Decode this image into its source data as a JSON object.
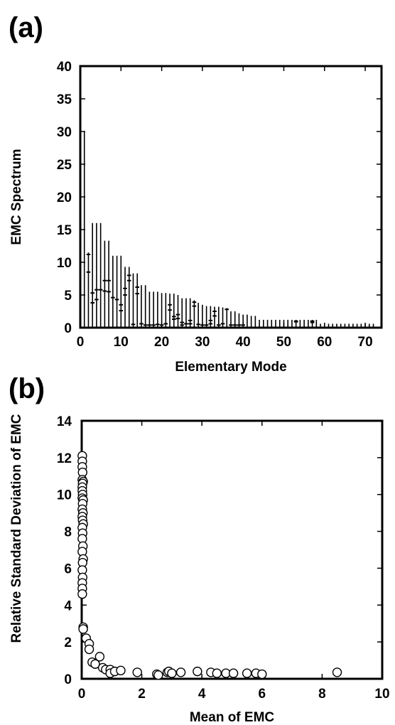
{
  "chart_data": [
    {
      "panel_label": "(a)",
      "type": "bar",
      "title": "",
      "xlabel": "Elementary Mode",
      "ylabel": "EMC Spectrum",
      "xlim": [
        0,
        74
      ],
      "ylim": [
        0,
        40
      ],
      "xticks": [
        0,
        10,
        20,
        30,
        40,
        50,
        60,
        70
      ],
      "yticks": [
        0,
        5,
        10,
        15,
        20,
        25,
        30,
        35,
        40
      ],
      "grid": false,
      "legend": "none",
      "modes": [
        {
          "x": 1,
          "min": 0,
          "max": 30,
          "marks": []
        },
        {
          "x": 2,
          "min": 0,
          "max": 11.5,
          "marks": [
            11.2,
            8.5
          ]
        },
        {
          "x": 3,
          "min": 0,
          "max": 16,
          "marks": [
            5.3,
            3.8
          ]
        },
        {
          "x": 4,
          "min": 0,
          "max": 16,
          "marks": [
            5.8,
            4.3
          ]
        },
        {
          "x": 5,
          "min": 0,
          "max": 16,
          "marks": [
            5.8
          ]
        },
        {
          "x": 6,
          "min": 0,
          "max": 13.3,
          "marks": [
            7.2,
            5.6
          ]
        },
        {
          "x": 7,
          "min": 0,
          "max": 13.3,
          "marks": [
            7.2,
            5.5
          ]
        },
        {
          "x": 8,
          "min": 0,
          "max": 11,
          "marks": [
            4.6
          ]
        },
        {
          "x": 9,
          "min": 0,
          "max": 11,
          "marks": [
            4.3
          ]
        },
        {
          "x": 10,
          "min": 0,
          "max": 11,
          "marks": [
            3.5,
            2.6
          ]
        },
        {
          "x": 11,
          "min": 0,
          "max": 9.3,
          "marks": [
            6,
            5
          ]
        },
        {
          "x": 12,
          "min": 0,
          "max": 9.3,
          "marks": [
            8,
            7.2
          ]
        },
        {
          "x": 13,
          "min": 0,
          "max": 8.3,
          "marks": [
            0.5
          ]
        },
        {
          "x": 14,
          "min": 0,
          "max": 8.3,
          "marks": [
            6.2,
            5.2
          ]
        },
        {
          "x": 15,
          "min": 0,
          "max": 6.5,
          "marks": [
            0.6
          ]
        },
        {
          "x": 16,
          "min": 0,
          "max": 6.5,
          "marks": [
            0.4
          ]
        },
        {
          "x": 17,
          "min": 0,
          "max": 5.5,
          "marks": [
            0.4
          ]
        },
        {
          "x": 18,
          "min": 0,
          "max": 5.5,
          "marks": [
            0.4
          ]
        },
        {
          "x": 19,
          "min": 0,
          "max": 5.5,
          "marks": [
            0.5
          ]
        },
        {
          "x": 20,
          "min": 0,
          "max": 5.3,
          "marks": [
            0.4
          ]
        },
        {
          "x": 21,
          "min": 0,
          "max": 5.3,
          "marks": [
            0.6
          ]
        },
        {
          "x": 22,
          "min": 0,
          "max": 5.2,
          "marks": [
            3.5,
            2.7
          ]
        },
        {
          "x": 23,
          "min": 0,
          "max": 5.2,
          "marks": [
            1.7,
            1.3
          ]
        },
        {
          "x": 24,
          "min": 0,
          "max": 5,
          "marks": [
            2,
            1.4
          ]
        },
        {
          "x": 25,
          "min": 0,
          "max": 4.5,
          "marks": [
            0.8,
            0.4
          ]
        },
        {
          "x": 26,
          "min": 0,
          "max": 4.5,
          "marks": [
            0.6
          ]
        },
        {
          "x": 27,
          "min": 0,
          "max": 4.5,
          "marks": [
            1.1,
            0.6
          ]
        },
        {
          "x": 28,
          "min": 0,
          "max": 4.2,
          "marks": [
            3.9,
            3.3
          ]
        },
        {
          "x": 29,
          "min": 0,
          "max": 3.8,
          "marks": [
            0.5
          ]
        },
        {
          "x": 30,
          "min": 0,
          "max": 3.5,
          "marks": [
            0.4
          ]
        },
        {
          "x": 31,
          "min": 0,
          "max": 3.3,
          "marks": [
            0.4
          ]
        },
        {
          "x": 32,
          "min": 0,
          "max": 3.3,
          "marks": [
            1.1,
            0.6
          ]
        },
        {
          "x": 33,
          "min": 0,
          "max": 3.2,
          "marks": [
            2.5,
            1.8
          ]
        },
        {
          "x": 34,
          "min": 0,
          "max": 3.2,
          "marks": [
            0.4
          ]
        },
        {
          "x": 35,
          "min": 0,
          "max": 3.1,
          "marks": [
            0.6
          ]
        },
        {
          "x": 36,
          "min": 0,
          "max": 3,
          "marks": [
            2.8
          ]
        },
        {
          "x": 37,
          "min": 0,
          "max": 2.5,
          "marks": [
            0.4
          ]
        },
        {
          "x": 38,
          "min": 0,
          "max": 2.5,
          "marks": [
            0.4
          ]
        },
        {
          "x": 39,
          "min": 0,
          "max": 2.2,
          "marks": [
            0.4
          ]
        },
        {
          "x": 40,
          "min": 0,
          "max": 2,
          "marks": [
            0.4
          ]
        },
        {
          "x": 41,
          "min": 0,
          "max": 2,
          "marks": []
        },
        {
          "x": 42,
          "min": 0,
          "max": 1.8,
          "marks": []
        },
        {
          "x": 43,
          "min": 0,
          "max": 1.8,
          "marks": []
        },
        {
          "x": 44,
          "min": 0,
          "max": 1.2,
          "marks": []
        },
        {
          "x": 45,
          "min": 0,
          "max": 1.2,
          "marks": []
        },
        {
          "x": 46,
          "min": 0,
          "max": 1.2,
          "marks": []
        },
        {
          "x": 47,
          "min": 0,
          "max": 1.2,
          "marks": []
        },
        {
          "x": 48,
          "min": 0,
          "max": 1.2,
          "marks": []
        },
        {
          "x": 49,
          "min": 0,
          "max": 1.2,
          "marks": []
        },
        {
          "x": 50,
          "min": 0,
          "max": 1.2,
          "marks": []
        },
        {
          "x": 51,
          "min": 0,
          "max": 1.2,
          "marks": []
        },
        {
          "x": 52,
          "min": 0,
          "max": 1.2,
          "marks": []
        },
        {
          "x": 53,
          "min": 0,
          "max": 1.2,
          "marks": [
            1,
            0.9
          ]
        },
        {
          "x": 54,
          "min": 0,
          "max": 1.2,
          "marks": []
        },
        {
          "x": 55,
          "min": 0,
          "max": 1.2,
          "marks": []
        },
        {
          "x": 56,
          "min": 0,
          "max": 1.2,
          "marks": []
        },
        {
          "x": 57,
          "min": 0,
          "max": 1.2,
          "marks": [
            1,
            0.8
          ]
        },
        {
          "x": 58,
          "min": 0,
          "max": 1.2,
          "marks": []
        },
        {
          "x": 59,
          "min": 0,
          "max": 0.6,
          "marks": []
        },
        {
          "x": 60,
          "min": 0,
          "max": 0.6,
          "marks": []
        },
        {
          "x": 61,
          "min": 0,
          "max": 0.6,
          "marks": []
        },
        {
          "x": 62,
          "min": 0,
          "max": 0.6,
          "marks": []
        },
        {
          "x": 63,
          "min": 0,
          "max": 0.6,
          "marks": []
        },
        {
          "x": 64,
          "min": 0,
          "max": 0.6,
          "marks": []
        },
        {
          "x": 65,
          "min": 0,
          "max": 0.6,
          "marks": []
        },
        {
          "x": 66,
          "min": 0,
          "max": 0.6,
          "marks": []
        },
        {
          "x": 67,
          "min": 0,
          "max": 0.6,
          "marks": []
        },
        {
          "x": 68,
          "min": 0,
          "max": 0.6,
          "marks": []
        },
        {
          "x": 69,
          "min": 0,
          "max": 0.6,
          "marks": []
        },
        {
          "x": 70,
          "min": 0,
          "max": 0.6,
          "marks": []
        },
        {
          "x": 71,
          "min": 0,
          "max": 0.6,
          "marks": []
        },
        {
          "x": 72,
          "min": 0,
          "max": 0.6,
          "marks": []
        }
      ]
    },
    {
      "panel_label": "(b)",
      "type": "scatter",
      "title": "",
      "xlabel": "Mean of EMC",
      "ylabel": "Relative Standard Deviation of EMC",
      "xlim": [
        0,
        10
      ],
      "ylim": [
        0,
        14
      ],
      "xticks": [
        0,
        2,
        4,
        6,
        8,
        10
      ],
      "yticks": [
        0,
        2,
        4,
        6,
        8,
        10,
        12,
        14
      ],
      "grid": false,
      "legend": "none",
      "marker": "open-circle",
      "points": [
        [
          0.02,
          12.1
        ],
        [
          0.02,
          11.8
        ],
        [
          0.02,
          11.5
        ],
        [
          0.03,
          11.2
        ],
        [
          0.02,
          10.8
        ],
        [
          0.05,
          10.7
        ],
        [
          0.03,
          10.6
        ],
        [
          0.02,
          10.4
        ],
        [
          0.02,
          10.2
        ],
        [
          0.03,
          10.0
        ],
        [
          0.02,
          9.8
        ],
        [
          0.05,
          9.7
        ],
        [
          0.03,
          9.5
        ],
        [
          0.02,
          9.2
        ],
        [
          0.04,
          9.0
        ],
        [
          0.02,
          8.8
        ],
        [
          0.03,
          8.6
        ],
        [
          0.05,
          8.4
        ],
        [
          0.02,
          8.2
        ],
        [
          0.03,
          7.9
        ],
        [
          0.02,
          7.6
        ],
        [
          0.04,
          7.2
        ],
        [
          0.02,
          6.9
        ],
        [
          0.05,
          6.5
        ],
        [
          0.03,
          6.3
        ],
        [
          0.02,
          5.9
        ],
        [
          0.03,
          5.5
        ],
        [
          0.02,
          5.2
        ],
        [
          0.02,
          4.9
        ],
        [
          0.02,
          4.6
        ],
        [
          0.05,
          2.8
        ],
        [
          0.05,
          2.7
        ],
        [
          0.15,
          2.2
        ],
        [
          0.25,
          1.9
        ],
        [
          0.25,
          1.6
        ],
        [
          0.35,
          0.9
        ],
        [
          0.45,
          0.8
        ],
        [
          0.6,
          1.2
        ],
        [
          0.7,
          0.6
        ],
        [
          0.8,
          0.5
        ],
        [
          0.95,
          0.5
        ],
        [
          0.95,
          0.3
        ],
        [
          1.1,
          0.4
        ],
        [
          1.3,
          0.45
        ],
        [
          1.85,
          0.35
        ],
        [
          2.5,
          0.25
        ],
        [
          2.55,
          0.2
        ],
        [
          2.85,
          0.35
        ],
        [
          2.9,
          0.4
        ],
        [
          3.0,
          0.3
        ],
        [
          3.3,
          0.35
        ],
        [
          3.85,
          0.4
        ],
        [
          4.3,
          0.35
        ],
        [
          4.5,
          0.3
        ],
        [
          4.8,
          0.3
        ],
        [
          5.05,
          0.3
        ],
        [
          5.5,
          0.3
        ],
        [
          5.8,
          0.3
        ],
        [
          6.0,
          0.25
        ],
        [
          8.5,
          0.35
        ]
      ]
    }
  ]
}
